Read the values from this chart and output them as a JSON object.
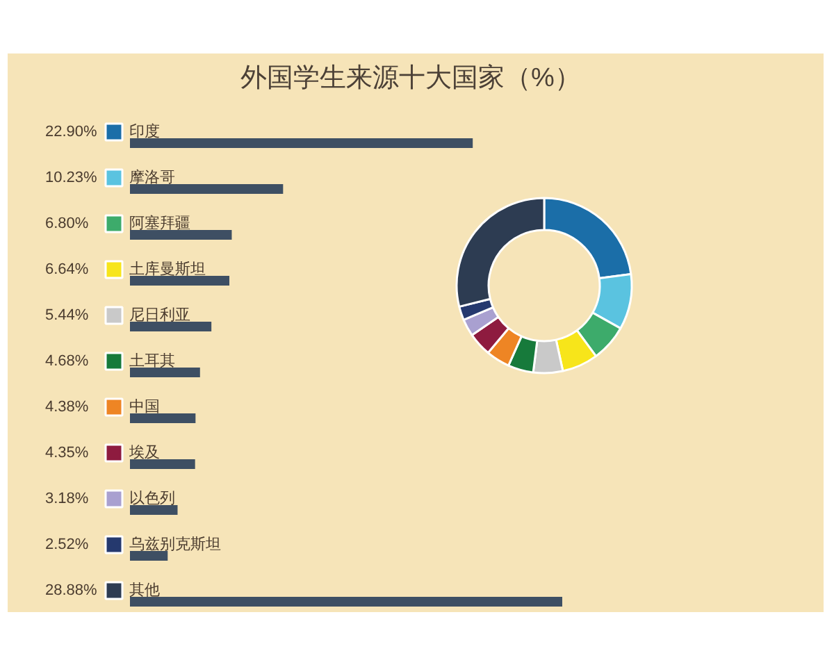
{
  "chart_data": [
    {
      "type": "bar",
      "orientation": "horizontal",
      "title": "外国学生来源十大国家（%）",
      "categories": [
        null,
        null,
        null,
        null,
        null,
        null,
        null,
        null,
        null,
        null,
        null
      ],
      "values": [
        22.9,
        10.23,
        6.8,
        6.64,
        5.44,
        4.68,
        4.38,
        4.35,
        3.18,
        2.52,
        28.88
      ],
      "value_labels": [
        "22.90%",
        "10.23%",
        "6.80%",
        "6.64%",
        "5.44%",
        "4.68%",
        "4.38%",
        "4.35%",
        "3.18%",
        "2.52%",
        "28.88%"
      ],
      "color": "#3e4f63"
    },
    {
      "type": "donut",
      "categories": [
        "印度",
        "摩洛哥",
        "阿塞拜疆",
        "土库曼斯坦",
        "尼日利亚",
        "土耳其",
        "中国",
        "埃及",
        "以色列",
        "乌兹别克斯坦",
        "其他"
      ],
      "values": [
        22.9,
        10.23,
        6.8,
        6.64,
        5.44,
        4.68,
        4.38,
        4.35,
        3.18,
        2.52,
        28.88
      ],
      "colors": [
        "#1b6ea8",
        "#5ac3e0",
        "#3dab6b",
        "#f7e51a",
        "#c9c9c9",
        "#177a3b",
        "#ee8524",
        "#8e1b3f",
        "#a9a0d0",
        "#25396e",
        "#2d3c52"
      ],
      "legend": "left"
    }
  ]
}
